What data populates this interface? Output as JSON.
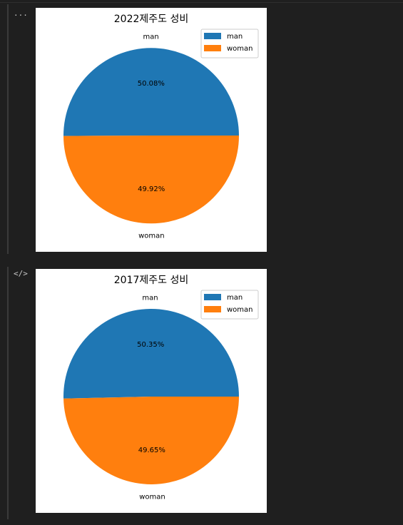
{
  "icons": {
    "output_toggle": "...",
    "code_toggle": "</>"
  },
  "chart_data": [
    {
      "type": "pie",
      "title": "2022제주도 성비",
      "categories": [
        "man",
        "woman"
      ],
      "values": [
        50.08,
        49.92
      ],
      "data_labels": [
        "50.08%",
        "49.92%"
      ],
      "colors": [
        "#1f77b4",
        "#ff7f0e"
      ],
      "legend": {
        "position": "top-right",
        "entries": [
          "man",
          "woman"
        ]
      }
    },
    {
      "type": "pie",
      "title": "2017제주도 성비",
      "categories": [
        "man",
        "woman"
      ],
      "values": [
        50.35,
        49.65
      ],
      "data_labels": [
        "50.35%",
        "49.65%"
      ],
      "colors": [
        "#1f77b4",
        "#ff7f0e"
      ],
      "legend": {
        "position": "top-right",
        "entries": [
          "man",
          "woman"
        ]
      }
    }
  ]
}
